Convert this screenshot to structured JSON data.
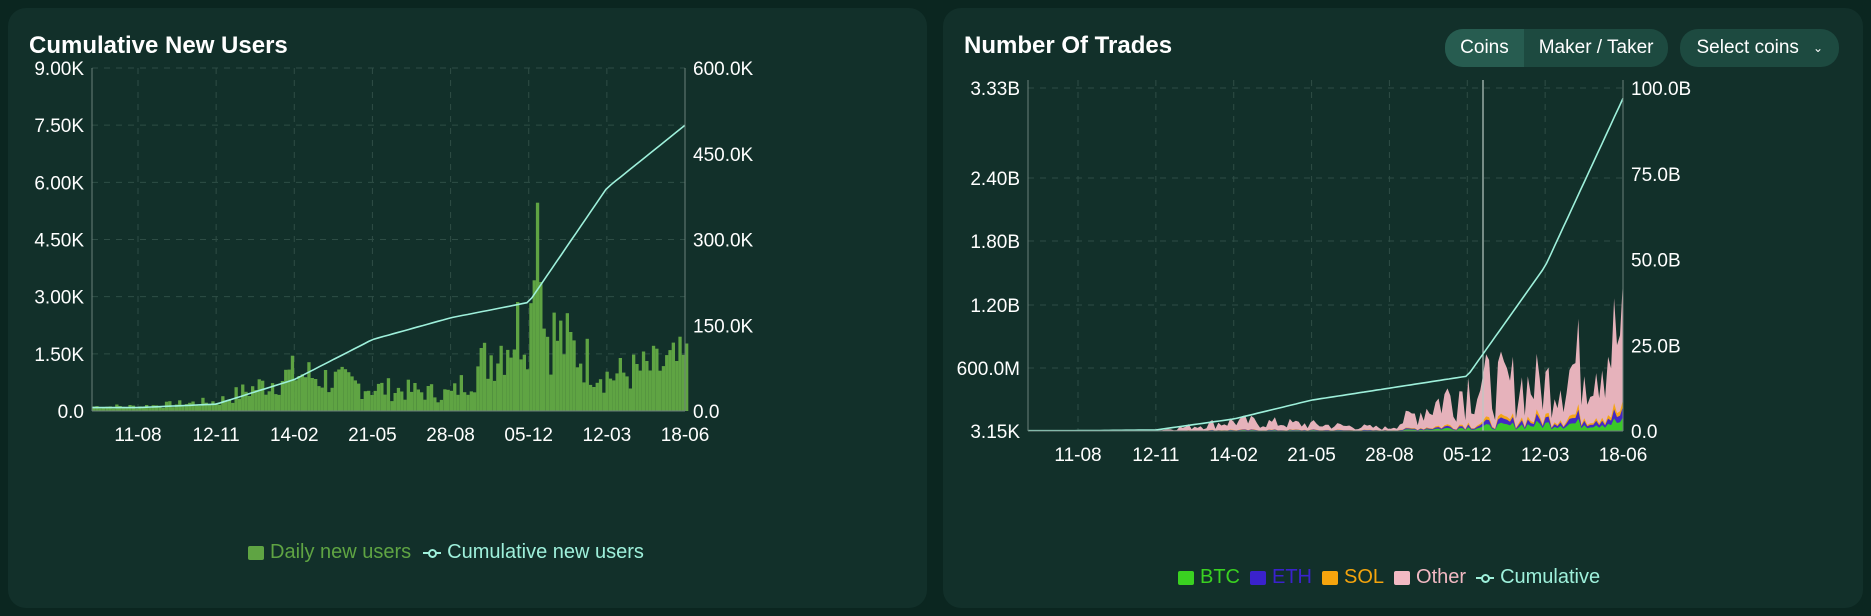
{
  "cards": {
    "left": {
      "title": "Cumulative New Users"
    },
    "right": {
      "title": "Number Of Trades",
      "toggle": {
        "options": [
          "Coins",
          "Maker / Taker"
        ],
        "active": "Coins"
      },
      "select": {
        "label": "Select coins"
      }
    }
  },
  "colors": {
    "bar_green": "#5fa443",
    "line": "#9ef0db",
    "btc": "#3ad121",
    "eth": "#3a22cc",
    "sol": "#f5a40d",
    "other": "#f2b9c3"
  },
  "chart_data": [
    {
      "type": "bar+line",
      "title": "Cumulative New Users",
      "x_ticks": [
        "11-08",
        "12-11",
        "14-02",
        "21-05",
        "28-08",
        "05-12",
        "12-03",
        "18-06"
      ],
      "y_left": {
        "ticks": [
          "0.0",
          "1.50K",
          "3.00K",
          "4.50K",
          "6.00K",
          "7.50K",
          "9.00K"
        ],
        "range": [
          0,
          9000
        ]
      },
      "y_right": {
        "ticks": [
          "0.0",
          "150.0K",
          "300.0K",
          "450.0K",
          "600.0K"
        ],
        "range": [
          0,
          600000
        ]
      },
      "legend": [
        "Daily new users",
        "Cumulative new users"
      ],
      "legend_placement": "bottom",
      "grid": true,
      "series": [
        {
          "name": "Daily new users",
          "kind": "bar",
          "axis": "left",
          "x": [
            "11-08",
            "12-11",
            "14-02",
            "21-05",
            "28-08",
            "05-12",
            "12-03",
            "18-06"
          ],
          "values": [
            120,
            250,
            1000,
            600,
            450,
            2500,
            900,
            1300
          ]
        },
        {
          "name": "Cumulative new users",
          "kind": "line",
          "axis": "right",
          "x": [
            "11-08",
            "12-11",
            "14-02",
            "21-05",
            "28-08",
            "05-12",
            "12-03",
            "18-06"
          ],
          "values": [
            6000,
            12000,
            55000,
            125000,
            163000,
            190000,
            390000,
            500000
          ]
        }
      ]
    },
    {
      "type": "stacked-area+line",
      "title": "Number Of Trades",
      "x_ticks": [
        "11-08",
        "12-11",
        "14-02",
        "21-05",
        "28-08",
        "05-12",
        "12-03",
        "18-06"
      ],
      "y_left": {
        "ticks": [
          "3.15K",
          "600.0M",
          "1.20B",
          "1.80B",
          "2.40B",
          "3.33B"
        ]
      },
      "y_right": {
        "ticks": [
          "0.0",
          "25.0B",
          "50.0B",
          "75.0B",
          "100.0B"
        ],
        "range": [
          0,
          100000000000
        ]
      },
      "legend": [
        "BTC",
        "ETH",
        "SOL",
        "Other",
        "Cumulative"
      ],
      "legend_placement": "bottom",
      "grid": true,
      "series": [
        {
          "name": "BTC",
          "kind": "area",
          "axis": "left",
          "x": [
            "11-08",
            "12-11",
            "14-02",
            "21-05",
            "28-08",
            "05-12",
            "12-03",
            "18-06"
          ],
          "values": [
            0,
            0,
            5000000,
            5000000,
            3000000,
            30000000,
            60000000,
            80000000
          ]
        },
        {
          "name": "ETH",
          "kind": "area",
          "axis": "left",
          "x": [
            "11-08",
            "12-11",
            "14-02",
            "21-05",
            "28-08",
            "05-12",
            "12-03",
            "18-06"
          ],
          "values": [
            0,
            0,
            3000000,
            3000000,
            2000000,
            20000000,
            40000000,
            60000000
          ]
        },
        {
          "name": "SOL",
          "kind": "area",
          "axis": "left",
          "x": [
            "11-08",
            "12-11",
            "14-02",
            "21-05",
            "28-08",
            "05-12",
            "12-03",
            "18-06"
          ],
          "values": [
            0,
            0,
            2000000,
            2000000,
            1000000,
            15000000,
            25000000,
            40000000
          ]
        },
        {
          "name": "Other",
          "kind": "area",
          "axis": "left",
          "x": [
            "11-08",
            "12-11",
            "14-02",
            "21-05",
            "28-08",
            "05-12",
            "12-03",
            "18-06"
          ],
          "values": [
            1000000,
            3000000,
            80000000,
            50000000,
            20000000,
            350000000,
            300000000,
            700000000
          ]
        },
        {
          "name": "Cumulative",
          "kind": "line",
          "axis": "right",
          "x": [
            "11-08",
            "12-11",
            "14-02",
            "21-05",
            "28-08",
            "05-12",
            "12-03",
            "18-06"
          ],
          "values": [
            100000000,
            300000000,
            3500000000,
            9000000000,
            12500000000,
            16000000000,
            48000000000,
            97000000000
          ]
        }
      ]
    }
  ],
  "legend": {
    "left": {
      "daily": "Daily new users",
      "cumulative": "Cumulative new users"
    },
    "right": {
      "btc": "BTC",
      "eth": "ETH",
      "sol": "SOL",
      "other": "Other",
      "cumulative": "Cumulative"
    }
  }
}
